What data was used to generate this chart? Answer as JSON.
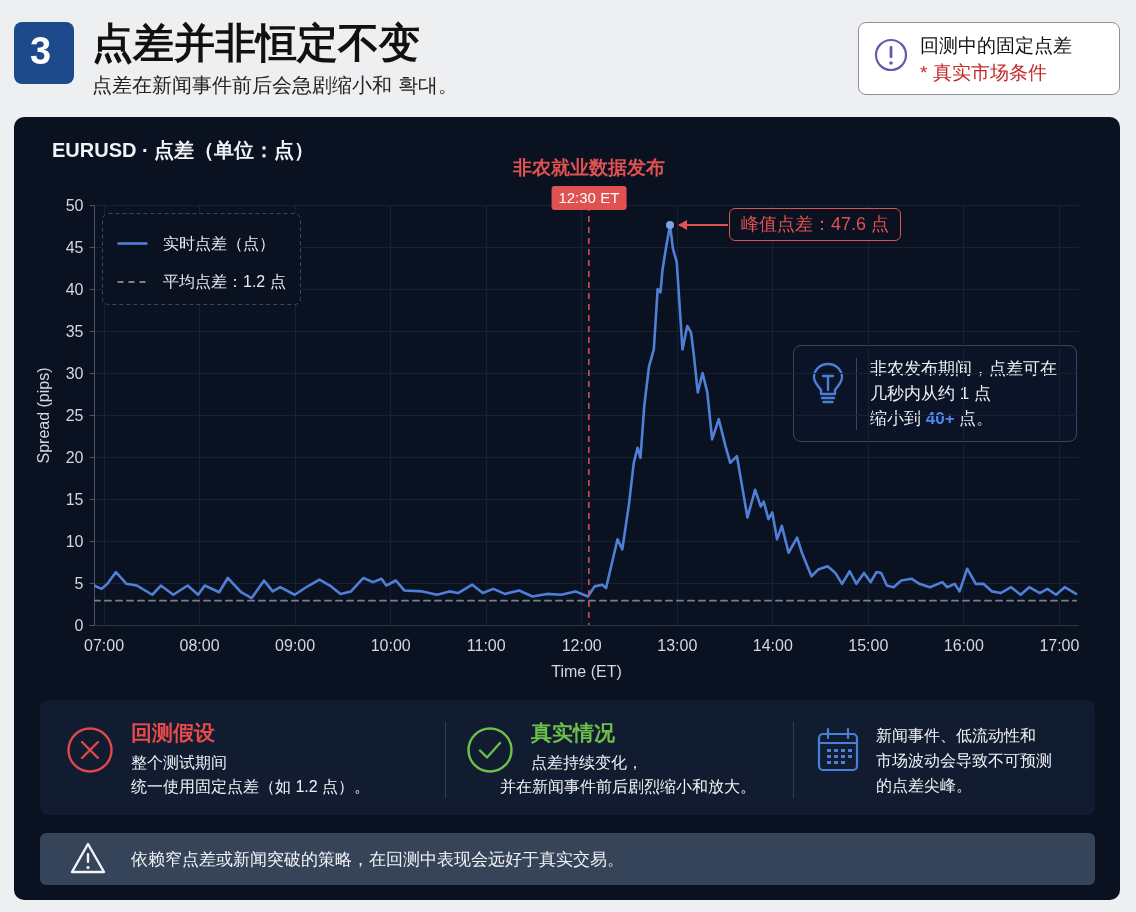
{
  "chart_data": {
    "type": "line",
    "title": "点差并非恒定不变",
    "subtitle": "点差在新闻事件前后会急剧缩小和 확대。",
    "xlabel": "Time (ET)",
    "ylabel": "Spread (pips)",
    "xlim": [
      6.9,
      17.2
    ],
    "xticks": [
      {
        "value": 7,
        "label": "07:00"
      },
      {
        "value": 8,
        "label": "08:00"
      },
      {
        "value": 9,
        "label": "09:00"
      },
      {
        "value": 10,
        "label": "10:00"
      },
      {
        "value": 11,
        "label": "11:00"
      },
      {
        "value": 12,
        "label": "12:00"
      },
      {
        "value": 13,
        "label": "13:00"
      },
      {
        "value": 14,
        "label": "14:00"
      },
      {
        "value": 15,
        "label": "15:00"
      },
      {
        "value": 16,
        "label": "16:00"
      },
      {
        "value": 17,
        "label": "17:00"
      }
    ],
    "ylim": [
      0,
      50
    ],
    "yticks": [
      0,
      5,
      10,
      15,
      20,
      25,
      30,
      35,
      40,
      45,
      50
    ],
    "grid": true,
    "legend": "top left",
    "series": [
      {
        "name": "实时点差（点）",
        "color": "#4f7fd6",
        "line_style": "solid",
        "x": [
          6.9,
          6.98,
          7.04,
          7.13,
          7.24,
          7.35,
          7.51,
          7.6,
          7.73,
          7.88,
          7.99,
          8.06,
          8.21,
          8.3,
          8.44,
          8.55,
          8.68,
          8.77,
          8.85,
          9.0,
          9.15,
          9.26,
          9.37,
          9.48,
          9.59,
          9.72,
          9.82,
          9.91,
          9.96,
          10.06,
          10.15,
          10.34,
          10.49,
          10.62,
          10.71,
          10.86,
          10.97,
          11.08,
          11.2,
          11.35,
          11.49,
          11.64,
          11.79,
          11.94,
          12.07,
          12.14,
          12.22,
          12.26,
          12.38,
          12.43,
          12.5,
          12.55,
          12.59,
          12.62,
          12.66,
          12.71,
          12.76,
          12.8,
          12.83,
          12.85,
          12.89,
          12.93,
          12.96,
          13.0,
          13.06,
          13.11,
          13.15,
          13.18,
          13.22,
          13.27,
          13.32,
          13.37,
          13.44,
          13.51,
          13.56,
          13.63,
          13.74,
          13.82,
          13.88,
          13.91,
          13.96,
          14.0,
          14.05,
          14.1,
          14.17,
          14.26,
          14.31,
          14.41,
          14.48,
          14.58,
          14.66,
          14.73,
          14.81,
          14.88,
          14.96,
          15.03,
          15.09,
          15.14,
          15.2,
          15.27,
          15.35,
          15.46,
          15.54,
          15.65,
          15.78,
          15.83,
          15.91,
          15.96,
          16.04,
          16.13,
          16.21,
          16.3,
          16.39,
          16.5,
          16.6,
          16.69,
          16.8,
          16.88,
          16.97,
          17.06,
          17.18
        ],
        "values": [
          4.7,
          4.3,
          4.9,
          6.3,
          4.9,
          4.7,
          3.6,
          4.7,
          3.6,
          4.7,
          3.6,
          4.7,
          3.9,
          5.6,
          3.9,
          3.2,
          5.3,
          4.0,
          4.5,
          3.6,
          4.7,
          5.4,
          4.7,
          3.7,
          4.0,
          5.6,
          5.1,
          5.5,
          4.7,
          5.3,
          4.1,
          4.0,
          3.6,
          4.0,
          3.8,
          4.8,
          3.8,
          4.3,
          3.7,
          4.1,
          3.4,
          3.7,
          3.6,
          4.0,
          3.4,
          4.6,
          4.8,
          4.4,
          10.2,
          9.0,
          14.4,
          19.3,
          21.1,
          19.9,
          26.1,
          30.8,
          32.8,
          40.0,
          39.6,
          42.2,
          45.1,
          47.6,
          44.8,
          43.2,
          32.8,
          35.6,
          34.8,
          32.0,
          27.7,
          30.0,
          27.7,
          22.1,
          24.5,
          21.3,
          19.3,
          20.1,
          12.8,
          16.1,
          14.1,
          14.7,
          12.6,
          13.4,
          10.2,
          11.8,
          8.6,
          10.4,
          8.6,
          5.8,
          6.6,
          7.0,
          6.2,
          4.9,
          6.4,
          4.9,
          6.2,
          5.1,
          6.3,
          6.2,
          4.7,
          4.5,
          5.3,
          5.5,
          4.9,
          4.5,
          5.1,
          4.5,
          4.9,
          4.0,
          6.7,
          4.9,
          4.9,
          4.0,
          3.8,
          4.5,
          3.6,
          4.5,
          3.8,
          4.3,
          3.6,
          4.5,
          3.7
        ]
      },
      {
        "name": "平均点差：1.2 点",
        "color": "#7a808c",
        "line_style": "dashed",
        "x": [
          6.9,
          17.18
        ],
        "values": [
          2.9,
          2.9
        ]
      }
    ],
    "ref_lines": [
      {
        "axis": "x",
        "value": 12.08,
        "label": "12:30 ET",
        "color": "#e05252",
        "line_style": "dashed"
      }
    ],
    "annotations": [
      "3",
      "回测中的固定点差",
      "* 真实市场条件",
      "EURUSD · 点差（单位：点）",
      "非农就业数据发布",
      {
        "text": "峰值点差：47.6 点",
        "x": 12.93,
        "y": 47.6
      },
      "非农发布期间，点差可在几秒内从约 1 点缩小到 40+ 点。",
      "回测假设",
      "整个测试期间统一使用固定点差（如 1.2 点）。",
      "真实情况",
      "点差持续变化，并在新闻事件前后剧烈缩小和放大。",
      "新闻事件、低流动性和市场波动会导致不可预测的点差尖峰。",
      "依赖窄点差或新闻突破的策略，在回测中表现会远好于真实交易。"
    ]
  }
}
